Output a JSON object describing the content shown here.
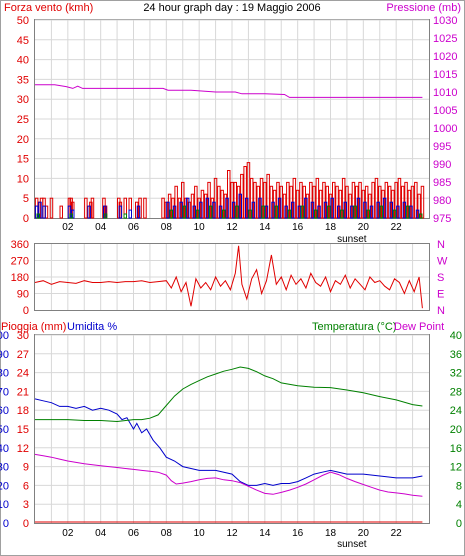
{
  "header": {
    "left_label": "Forza vento (kmh)",
    "title": "24 hour graph day : 19 Maggio 2006",
    "right_label": "Pressione (mb)"
  },
  "colors": {
    "frame": "#a0a0a0",
    "grid": "#d8d8d8",
    "blue": "#0000cc",
    "red": "#e00000",
    "green": "#008000",
    "magenta": "#cc00cc"
  },
  "chart_data": [
    {
      "type": "bar",
      "panel": "wind-pressure",
      "x_tick_labels": [
        "02",
        "04",
        "06",
        "08",
        "10",
        "12",
        "14",
        "16",
        "18",
        "20",
        "22"
      ],
      "x_marker": {
        "label": "sunset",
        "hour": 19.3
      },
      "xlim": [
        0,
        24
      ],
      "left_axis": {
        "label": "Forza vento (kmh)",
        "ticks": [
          0,
          5,
          10,
          15,
          20,
          25,
          30,
          35,
          40,
          45,
          50
        ],
        "ylim": [
          0,
          50
        ]
      },
      "right_axis": {
        "label": "Pressione (mb)",
        "ticks": [
          975,
          980,
          985,
          990,
          995,
          1000,
          1005,
          1010,
          1015,
          1020,
          1025,
          1030
        ],
        "ylim": [
          975,
          1030
        ]
      },
      "series": [
        {
          "name": "Forza vento (kmh)",
          "color": "#e00000",
          "hours": [
            0.1,
            0.25,
            0.4,
            0.55,
            0.7,
            1.0,
            1.6,
            2.1,
            2.2,
            2.3,
            3.1,
            3.4,
            3.5,
            4.2,
            4.3,
            5.1,
            5.2,
            5.5,
            5.8,
            6.2,
            6.4,
            6.7,
            7.8,
            8.0,
            8.2,
            8.4,
            8.6,
            8.8,
            9.0,
            9.2,
            9.4,
            9.6,
            9.8,
            10.0,
            10.2,
            10.4,
            10.6,
            10.8,
            11.0,
            11.2,
            11.4,
            11.6,
            11.8,
            12.0,
            12.2,
            12.4,
            12.6,
            12.8,
            13.0,
            13.2,
            13.4,
            13.6,
            13.8,
            14.0,
            14.2,
            14.4,
            14.6,
            14.8,
            15.0,
            15.2,
            15.4,
            15.6,
            15.8,
            16.0,
            16.2,
            16.4,
            16.6,
            16.8,
            17.0,
            17.2,
            17.4,
            17.6,
            17.8,
            18.0,
            18.2,
            18.4,
            18.6,
            18.8,
            19.0,
            19.2,
            19.4,
            19.6,
            19.8,
            20.0,
            20.2,
            20.4,
            20.6,
            20.8,
            21.0,
            21.2,
            21.4,
            21.6,
            21.8,
            22.0,
            22.2,
            22.4,
            22.6,
            22.8,
            23.0,
            23.2,
            23.4,
            23.6
          ],
          "values": [
            5,
            4,
            5,
            5,
            3,
            5,
            3,
            5,
            5,
            4,
            5,
            4,
            5,
            5,
            3,
            5,
            4,
            5,
            5,
            4,
            5,
            5,
            5,
            4,
            6,
            5,
            8,
            5,
            9,
            5,
            4,
            6,
            8,
            5,
            7,
            6,
            9,
            5,
            10,
            8,
            7,
            6,
            12,
            9,
            9,
            8,
            11,
            13,
            14,
            10,
            9,
            8,
            10,
            9,
            11,
            8,
            7,
            9,
            8,
            6,
            9,
            8,
            10,
            7,
            9,
            8,
            6,
            9,
            8,
            10,
            7,
            9,
            8,
            6,
            9,
            8,
            7,
            10,
            8,
            6,
            9,
            8,
            9,
            7,
            8,
            6,
            9,
            10,
            8,
            7,
            9,
            8,
            7,
            9,
            10,
            8,
            9,
            7,
            8,
            9,
            6,
            8
          ]
        },
        {
          "name": "Raffica",
          "color": "#0000cc",
          "hours": [
            0.1,
            0.3,
            0.55,
            2.1,
            2.3,
            3.3,
            4.25,
            5.2,
            5.8,
            6.3,
            8.1,
            8.5,
            8.9,
            9.3,
            9.7,
            10.1,
            10.5,
            10.9,
            11.3,
            11.7,
            12.1,
            12.5,
            12.9,
            13.3,
            13.7,
            14.1,
            14.5,
            14.9,
            15.3,
            15.7,
            16.1,
            16.5,
            16.9,
            17.3,
            17.7,
            18.1,
            18.5,
            18.9,
            19.3,
            19.7,
            20.1,
            20.5,
            20.9,
            21.3,
            21.7,
            22.1,
            22.5,
            22.9,
            23.3
          ],
          "values": [
            3,
            4,
            3,
            3,
            2,
            3,
            3,
            3,
            2,
            3,
            4,
            3,
            4,
            5,
            3,
            4,
            5,
            4,
            3,
            5,
            4,
            6,
            5,
            4,
            5,
            3,
            4,
            5,
            3,
            4,
            3,
            5,
            4,
            3,
            4,
            5,
            3,
            4,
            3,
            5,
            4,
            3,
            4,
            5,
            4,
            3,
            4,
            3,
            2
          ]
        },
        {
          "name": "Vento medio",
          "color": "#008000",
          "hours": [
            0.2,
            2.2,
            4.3,
            5.5,
            8.3,
            9.1,
            9.9,
            10.7,
            11.5,
            12.3,
            13.1,
            13.9,
            14.7,
            15.5,
            16.3,
            17.1,
            17.9,
            18.7,
            19.5,
            20.3,
            21.1,
            21.9,
            22.7,
            23.5
          ],
          "values": [
            1,
            1,
            1,
            1,
            2,
            3,
            2,
            3,
            2,
            3,
            2,
            3,
            3,
            2,
            3,
            2,
            3,
            2,
            3,
            2,
            3,
            2,
            3,
            1
          ]
        },
        {
          "name": "Pressione (mb)",
          "color": "#cc00cc",
          "hours": [
            0,
            1.2,
            1.9,
            2.3,
            2.6,
            2.9,
            3.3,
            4.5,
            6,
            7.8,
            8.1,
            9.5,
            11,
            12.2,
            12.6,
            14,
            15.2,
            15.5,
            17,
            19,
            21,
            23.6
          ],
          "values": [
            1012,
            1012,
            1011.5,
            1011,
            1011.6,
            1011,
            1011,
            1011,
            1011,
            1011,
            1010.5,
            1010.5,
            1010,
            1010,
            1009.5,
            1009.5,
            1009.3,
            1008.5,
            1008.5,
            1008.5,
            1008.5,
            1008.5
          ]
        }
      ]
    },
    {
      "type": "line",
      "panel": "wind-direction",
      "xlim": [
        0,
        24
      ],
      "left_axis": {
        "ticks": [
          0,
          90,
          180,
          270,
          360
        ],
        "ylim": [
          0,
          360
        ]
      },
      "right_axis": {
        "ticks": [
          "N",
          "E",
          "S",
          "W",
          "N"
        ]
      },
      "series": [
        {
          "name": "Direzione vento",
          "color": "#e00000",
          "hours": [
            0,
            0.5,
            1,
            1.5,
            2,
            2.5,
            3,
            3.5,
            4,
            4.5,
            5,
            5.5,
            6,
            6.5,
            7,
            7.5,
            8,
            8.3,
            8.6,
            8.9,
            9.2,
            9.5,
            9.8,
            10.1,
            10.4,
            10.7,
            11,
            11.3,
            11.6,
            11.9,
            12.2,
            12.4,
            12.6,
            12.9,
            13.2,
            13.5,
            13.8,
            14.1,
            14.4,
            14.7,
            15,
            15.3,
            15.6,
            15.9,
            16.2,
            16.5,
            16.8,
            17.1,
            17.4,
            17.7,
            18,
            18.3,
            18.6,
            18.9,
            19.2,
            19.5,
            19.8,
            20.1,
            20.4,
            20.7,
            21,
            21.3,
            21.6,
            21.9,
            22.2,
            22.5,
            22.8,
            23.1,
            23.4,
            23.6
          ],
          "values": [
            150,
            160,
            140,
            155,
            150,
            145,
            160,
            150,
            150,
            155,
            150,
            155,
            155,
            160,
            150,
            155,
            160,
            120,
            180,
            100,
            150,
            20,
            170,
            120,
            150,
            110,
            180,
            130,
            160,
            110,
            200,
            350,
            140,
            60,
            170,
            220,
            90,
            160,
            300,
            140,
            180,
            110,
            190,
            140,
            170,
            120,
            200,
            150,
            130,
            180,
            100,
            160,
            140,
            190,
            120,
            170,
            140,
            110,
            180,
            150,
            160,
            130,
            110,
            170,
            150,
            90,
            160,
            100,
            180,
            10
          ]
        }
      ]
    },
    {
      "type": "line",
      "panel": "rain-humidity-temperature",
      "xlim": [
        0,
        24
      ],
      "x_tick_labels": [
        "02",
        "04",
        "06",
        "08",
        "10",
        "12",
        "14",
        "16",
        "18",
        "20",
        "22"
      ],
      "x_marker": {
        "label": "sunset",
        "hour": 19.3
      },
      "top_labels": {
        "rain": "Pioggia (mm)",
        "humidity": "Umidita %",
        "temperature": "Temperatura (°C)",
        "dew_point": "Dew Point"
      },
      "humidity_axis": {
        "ticks": [
          0,
          10,
          20,
          30,
          40,
          50,
          60,
          70,
          80,
          90,
          100
        ],
        "ylim": [
          0,
          100
        ]
      },
      "rain_axis": {
        "ticks": [
          0,
          3,
          6,
          9,
          12,
          15,
          18,
          21,
          24,
          27,
          30
        ],
        "ylim": [
          0,
          30
        ]
      },
      "temperature_axis": {
        "ticks": [
          0,
          4,
          8,
          12,
          16,
          20,
          24,
          28,
          32,
          36,
          40
        ],
        "ylim": [
          0,
          40
        ]
      },
      "series": [
        {
          "name": "Umidita %",
          "color": "#0000cc",
          "hours": [
            0,
            0.5,
            1,
            1.5,
            2,
            2.5,
            3,
            3.5,
            4,
            4.5,
            5,
            5.3,
            5.6,
            6,
            6.2,
            6.5,
            6.8,
            7.2,
            7.6,
            8,
            8.5,
            9,
            9.5,
            10,
            11,
            12,
            12.5,
            13,
            13.5,
            14,
            14.5,
            15,
            15.5,
            16,
            16.5,
            17,
            17.5,
            18,
            18.5,
            19,
            20,
            21,
            22,
            23,
            23.6
          ],
          "values": [
            66,
            65,
            64,
            62,
            62,
            61,
            62,
            60,
            61,
            60,
            58,
            55,
            56,
            50,
            53,
            48,
            50,
            44,
            40,
            35,
            33,
            30,
            29,
            28,
            28,
            26,
            22,
            20,
            20,
            21,
            20,
            21,
            21,
            22,
            24,
            26,
            27,
            28,
            27,
            26,
            26,
            25,
            24,
            24,
            25
          ]
        },
        {
          "name": "Dew Point",
          "color": "#cc00cc",
          "hours": [
            0,
            0.5,
            1,
            1.5,
            2,
            2.5,
            3,
            3.5,
            4,
            4.5,
            5,
            5.5,
            6,
            6.5,
            7,
            7.5,
            8,
            8.3,
            8.6,
            9,
            9.5,
            10,
            10.5,
            11,
            11.5,
            12,
            12.5,
            13,
            13.5,
            14,
            14.5,
            15,
            15.5,
            16,
            16.5,
            17,
            17.5,
            18,
            18.5,
            19,
            19.5,
            20,
            20.5,
            21,
            21.5,
            22,
            22.5,
            23,
            23.6
          ],
          "values": [
            14.6,
            14.3,
            14,
            13.6,
            13.2,
            12.9,
            12.6,
            12.4,
            12.2,
            12,
            11.8,
            11.6,
            11.4,
            11.2,
            11,
            10.8,
            10.2,
            9,
            8.3,
            8.5,
            8.8,
            9.2,
            9.5,
            9.6,
            9.2,
            9,
            8.6,
            7.8,
            7,
            6.3,
            6.1,
            6.5,
            7,
            7.6,
            8.3,
            9.2,
            10.1,
            10.8,
            10.3,
            9.5,
            8.8,
            8.2,
            7.6,
            7,
            6.6,
            6.4,
            6.2,
            5.9,
            5.7
          ]
        },
        {
          "name": "Temperatura (°C)",
          "color": "#008000",
          "hours": [
            0,
            1,
            2,
            3,
            4,
            5,
            6,
            6.5,
            7,
            7.5,
            8,
            8.5,
            9,
            9.5,
            10,
            10.5,
            11,
            11.5,
            12,
            12.5,
            13,
            13.5,
            14,
            14.5,
            15,
            16,
            17,
            18,
            19,
            20,
            21,
            22,
            23,
            23.6
          ],
          "values": [
            22,
            22,
            22,
            21.8,
            21.8,
            21.6,
            22,
            22,
            22.3,
            23,
            25,
            27,
            28.5,
            29.5,
            30.3,
            31.1,
            31.7,
            32.3,
            32.7,
            33.2,
            32.9,
            32.2,
            31.3,
            30.7,
            29.8,
            29.2,
            28.9,
            28.8,
            28.3,
            27.7,
            26.9,
            26.2,
            25.2,
            24.9
          ]
        },
        {
          "name": "Pioggia (mm)",
          "color": "#e00000",
          "hours": [
            0,
            23.6
          ],
          "values": [
            0,
            0
          ]
        }
      ]
    }
  ]
}
